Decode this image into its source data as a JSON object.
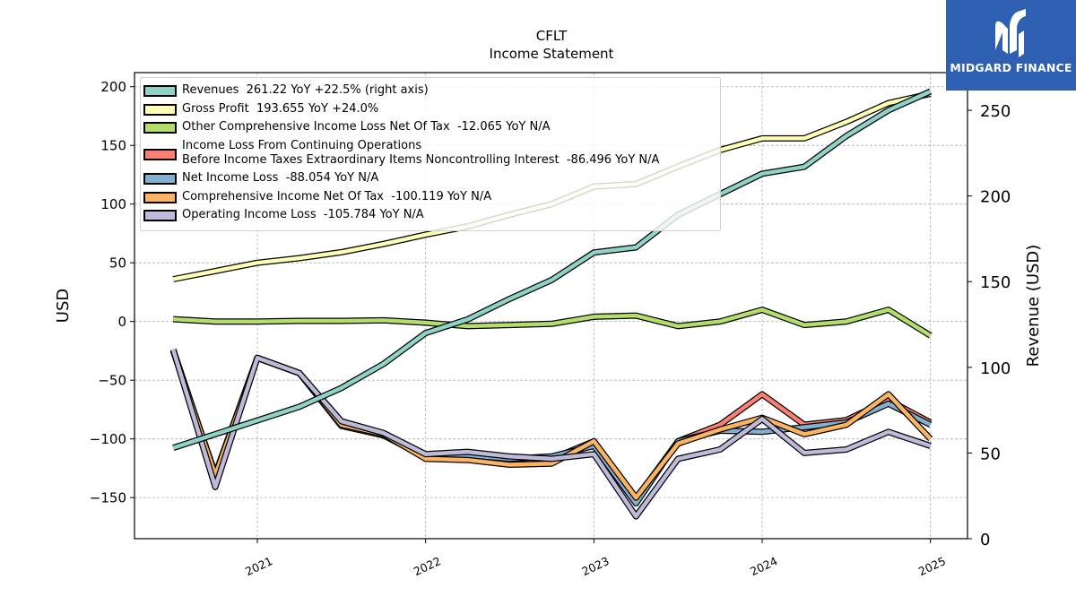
{
  "chart_data": {
    "type": "line",
    "title": "CFLT",
    "subtitle": "Income Statement",
    "ylabel_left": "USD",
    "ylabel_right": "Revenue (USD)",
    "ylim_left": [
      -185,
      212
    ],
    "ylim_right": [
      0,
      272
    ],
    "yticks_left": [
      "200",
      "150",
      "100",
      "50",
      "0",
      "−50",
      "−100",
      "−150"
    ],
    "yticks_left_values": [
      200,
      150,
      100,
      50,
      0,
      -50,
      -100,
      -150
    ],
    "yticks_right": [
      "250",
      "200",
      "150",
      "100",
      "50",
      "0"
    ],
    "yticks_right_values": [
      250,
      200,
      150,
      100,
      50,
      0
    ],
    "xlim": [
      2020.27,
      2025.22
    ],
    "xticks": [
      "2021",
      "2022",
      "2023",
      "2024",
      "2025"
    ],
    "xticks_values": [
      2021,
      2022,
      2023,
      2024,
      2025
    ],
    "grid": true,
    "legend_position": "top-left",
    "x": [
      2020.5,
      2020.75,
      2021.0,
      2021.25,
      2021.5,
      2021.75,
      2022.0,
      2022.25,
      2022.5,
      2022.75,
      2023.0,
      2023.25,
      2023.5,
      2023.75,
      2024.0,
      2024.25,
      2024.5,
      2024.75,
      2025.0
    ],
    "series": [
      {
        "key": "gross",
        "name": "Gross Profit  193.655 YoY +24.0%",
        "color": "#ffffb3",
        "axis": "left",
        "values": [
          36,
          43,
          50,
          54,
          59,
          66,
          74,
          81,
          91,
          100,
          115,
          117,
          132,
          146,
          156,
          156,
          170,
          186,
          194
        ]
      },
      {
        "key": "other",
        "name": "Other Comprehensive Income Loss Net Of Tax  -12.065 YoY N/A",
        "color": "#b3de69",
        "axis": "left",
        "values": [
          2,
          0,
          0,
          0.5,
          0.5,
          1,
          -1,
          -4,
          -3,
          -2,
          4,
          5,
          -4,
          0,
          10,
          -3,
          0,
          10,
          -12
        ]
      },
      {
        "key": "pretax",
        "name": "Income Loss From Continuing Operations\nBefore Income Taxes Extraordinary Items Noncontrolling Interest  -86.496 YoY N/A",
        "color": "#fb8072",
        "axis": "left",
        "values": [
          -25,
          -130,
          -31,
          -44,
          -88,
          -97,
          -115,
          -115,
          -119,
          -117,
          -102,
          -151,
          -102,
          -88,
          -62,
          -88,
          -84,
          -67,
          -86
        ]
      },
      {
        "key": "net",
        "name": "Net Income Loss  -88.054 YoY N/A",
        "color": "#80b1d3",
        "axis": "left",
        "values": [
          -25,
          -131,
          -31,
          -44,
          -89,
          -97,
          -116,
          -114,
          -117,
          -115,
          -106,
          -155,
          -102,
          -93,
          -94,
          -90,
          -86,
          -70,
          -88
        ]
      },
      {
        "key": "compr",
        "name": "Comprehensive Income Net Of Tax  -100.119 YoY N/A",
        "color": "#fdb462",
        "axis": "left",
        "values": [
          -24,
          -131,
          -31,
          -44,
          -88,
          -96,
          -117,
          -118,
          -122,
          -121,
          -102,
          -150,
          -104,
          -92,
          -82,
          -96,
          -88,
          -62,
          -100
        ]
      },
      {
        "key": "oper",
        "name": "Operating Income Loss  -105.784 YoY N/A",
        "color": "#bebada",
        "axis": "left",
        "values": [
          -24,
          -141,
          -31,
          -44,
          -85,
          -95,
          -113,
          -111,
          -115,
          -117,
          -113,
          -166,
          -117,
          -109,
          -83,
          -112,
          -109,
          -94,
          -106
        ]
      },
      {
        "key": "rev",
        "name": "Revenues  261.22 YoY +22.5% (right axis)",
        "color": "#8dd3c7",
        "axis": "right",
        "values": [
          53,
          61,
          69,
          77,
          88,
          102,
          120,
          128,
          140,
          151,
          167,
          170,
          189,
          201,
          213,
          217,
          235,
          250,
          261
        ]
      }
    ],
    "legend_order": [
      "rev",
      "gross",
      "other",
      "pretax",
      "net",
      "compr",
      "oper"
    ]
  },
  "logo": {
    "text": "MIDGARD FINANCE",
    "color": "#2f5fb0"
  }
}
